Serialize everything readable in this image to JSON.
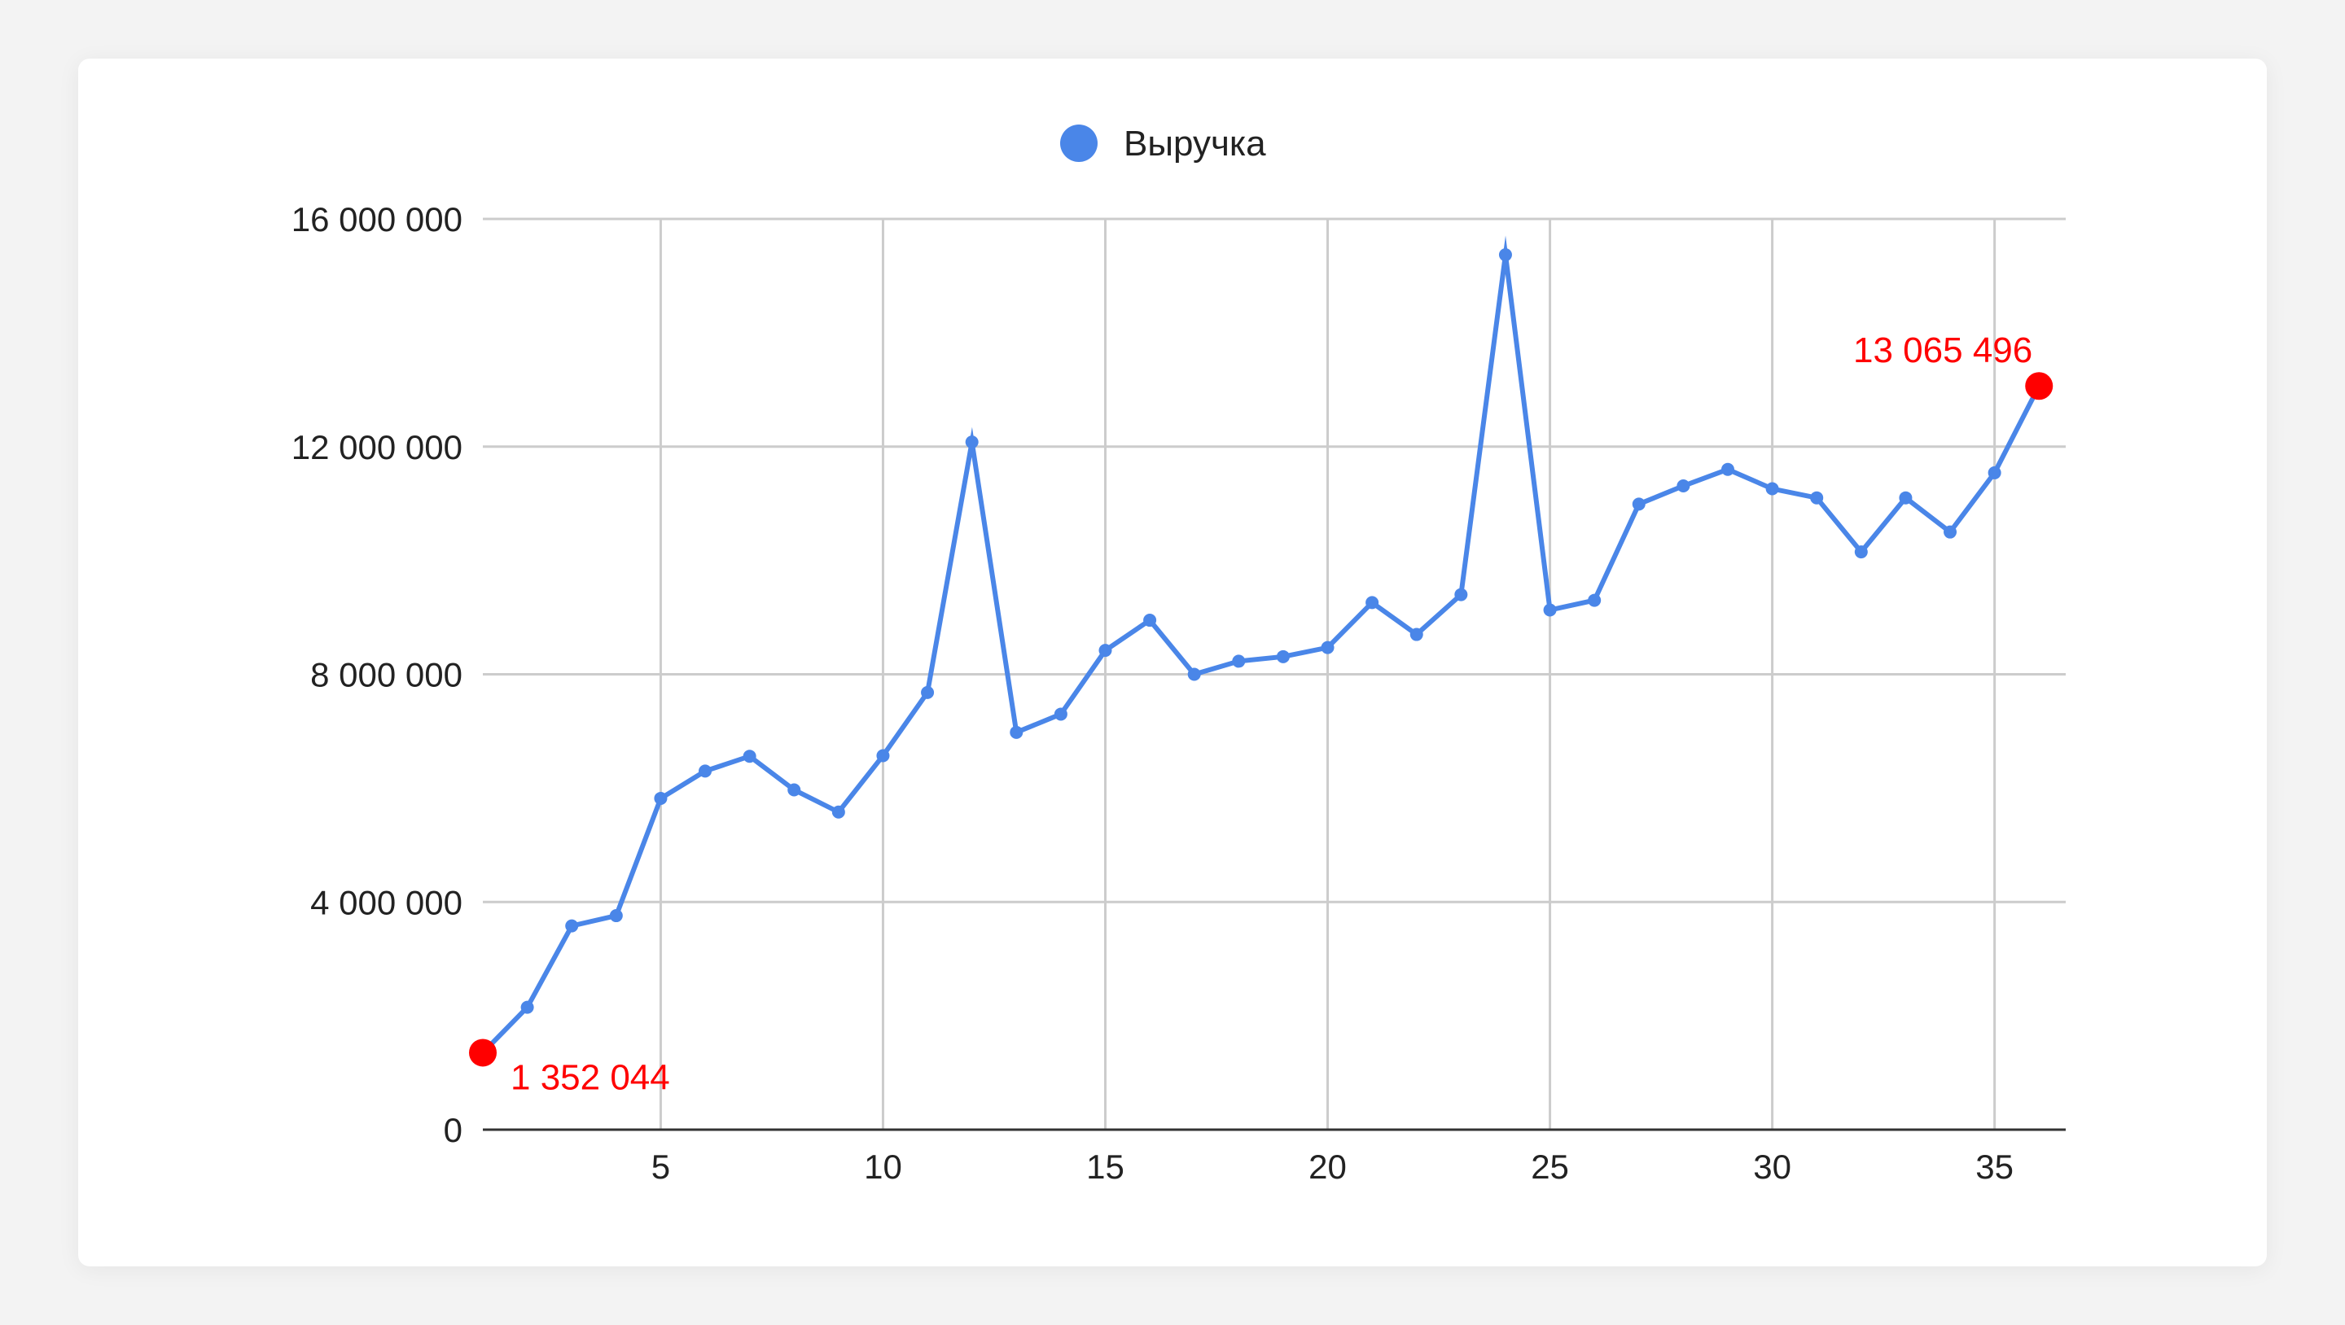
{
  "chart_data": {
    "type": "line",
    "title": "",
    "xlabel": "",
    "ylabel": "",
    "xlim": [
      1,
      36.6
    ],
    "ylim": [
      0,
      16000000
    ],
    "x_ticks": [
      5,
      10,
      15,
      20,
      25,
      30,
      35
    ],
    "x_tick_labels": [
      "5",
      "10",
      "15",
      "20",
      "25",
      "30",
      "35"
    ],
    "y_ticks": [
      0,
      4000000,
      8000000,
      12000000,
      16000000
    ],
    "y_tick_labels": [
      "0",
      "4 000 000",
      "8 000 000",
      "12 000 000",
      "16 000 000"
    ],
    "grid": true,
    "legend_position": "top-center",
    "series": [
      {
        "name": "Выручка",
        "color": "#4a86e8",
        "x": [
          1,
          2,
          3,
          4,
          5,
          6,
          7,
          8,
          9,
          10,
          11,
          12,
          13,
          14,
          15,
          16,
          17,
          18,
          19,
          20,
          21,
          22,
          23,
          24,
          25,
          26,
          27,
          28,
          29,
          30,
          31,
          32,
          33,
          34,
          35,
          36
        ],
        "values": [
          1352044,
          2150000,
          3580000,
          3760000,
          5820000,
          6300000,
          6560000,
          5970000,
          5580000,
          6570000,
          7680000,
          12080000,
          6980000,
          7300000,
          8420000,
          8950000,
          8000000,
          8230000,
          8310000,
          8470000,
          9260000,
          8700000,
          9400000,
          15370000,
          9130000,
          9300000,
          10990000,
          11310000,
          11600000,
          11260000,
          11100000,
          10150000,
          11100000,
          10500000,
          11540000,
          13065496
        ]
      }
    ],
    "annotations": [
      {
        "x": 1,
        "value": 1352044,
        "label": "1 352 044",
        "color": "#ff0000",
        "position": "below-right"
      },
      {
        "x": 36,
        "value": 13065496,
        "label": "13 065 496",
        "color": "#ff0000",
        "position": "above-left"
      }
    ]
  }
}
